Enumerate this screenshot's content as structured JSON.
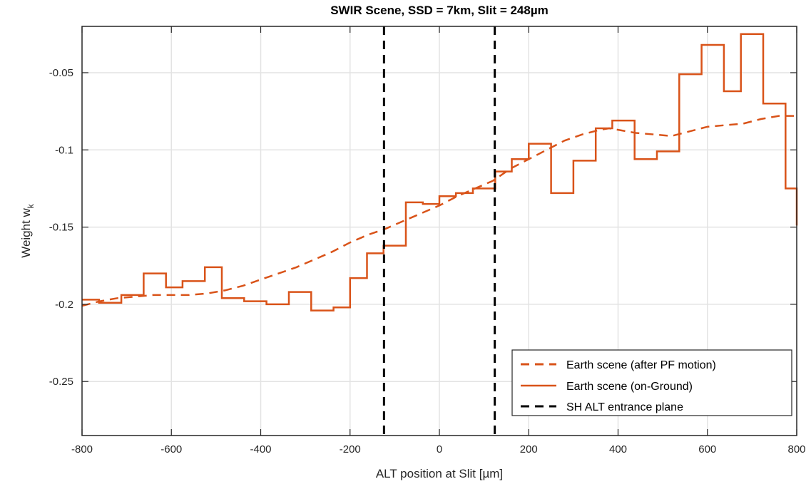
{
  "chart_data": {
    "type": "line",
    "title": "SWIR Scene, SSD = 7km, Slit = 248µm",
    "xlabel": "ALT position at Slit [µm]",
    "ylabel": "Weight w",
    "ylabel_subscript": "k",
    "xlim": [
      -800,
      800
    ],
    "ylim": [
      -0.285,
      -0.02
    ],
    "xticks": [
      -800,
      -600,
      -400,
      -200,
      0,
      200,
      400,
      600,
      800
    ],
    "xtick_labels": [
      "-800",
      "-600",
      "-400",
      "-200",
      "0",
      "200",
      "400",
      "600",
      "800"
    ],
    "yticks": [
      -0.25,
      -0.2,
      -0.15,
      -0.1,
      -0.05
    ],
    "ytick_labels": [
      "-0.25",
      "-0.2",
      "-0.15",
      "-0.1",
      "-0.05"
    ],
    "grid": true,
    "legend_position": "bottom-right",
    "colors": {
      "earth": "#D95319",
      "entrance": "#000000"
    },
    "series": [
      {
        "name": "Earth scene (after PF motion)",
        "style": "dashed",
        "x": [
          -800,
          -760,
          -720,
          -680,
          -640,
          -600,
          -560,
          -520,
          -480,
          -440,
          -400,
          -360,
          -320,
          -280,
          -240,
          -200,
          -160,
          -120,
          -80,
          -40,
          0,
          40,
          80,
          120,
          160,
          200,
          240,
          280,
          320,
          360,
          380,
          400,
          440,
          480,
          520,
          560,
          600,
          640,
          680,
          720,
          760,
          800
        ],
        "y": [
          -0.201,
          -0.198,
          -0.196,
          -0.195,
          -0.194,
          -0.194,
          -0.194,
          -0.193,
          -0.191,
          -0.188,
          -0.184,
          -0.18,
          -0.176,
          -0.171,
          -0.166,
          -0.16,
          -0.155,
          -0.151,
          -0.146,
          -0.141,
          -0.136,
          -0.13,
          -0.125,
          -0.12,
          -0.112,
          -0.106,
          -0.1,
          -0.094,
          -0.09,
          -0.087,
          -0.086,
          -0.087,
          -0.089,
          -0.09,
          -0.091,
          -0.088,
          -0.085,
          -0.084,
          -0.083,
          -0.08,
          -0.078,
          -0.078
        ]
      },
      {
        "name": "Earth scene (on-Ground)",
        "style": "stairs",
        "edges": [
          -800,
          -762,
          -712,
          -662,
          -612,
          -575,
          -525,
          -487,
          -437,
          -387,
          -337,
          -287,
          -237,
          -200,
          -162,
          -125,
          -75,
          -37,
          0,
          37,
          75,
          125,
          162,
          200,
          250,
          300,
          350,
          387,
          437,
          487,
          537,
          587,
          637,
          675,
          725,
          775,
          800
        ],
        "values": [
          -0.197,
          -0.199,
          -0.194,
          -0.18,
          -0.189,
          -0.185,
          -0.176,
          -0.196,
          -0.198,
          -0.2,
          -0.192,
          -0.204,
          -0.202,
          -0.183,
          -0.167,
          -0.162,
          -0.134,
          -0.135,
          -0.13,
          -0.128,
          -0.125,
          -0.114,
          -0.106,
          -0.096,
          -0.128,
          -0.107,
          -0.086,
          -0.081,
          -0.106,
          -0.101,
          -0.051,
          -0.032,
          -0.062,
          -0.025,
          -0.07,
          -0.125,
          -0.149
        ]
      },
      {
        "name": "SH ALT entrance plane",
        "style": "vertical-dashed",
        "x_positions": [
          -124,
          124
        ]
      }
    ]
  }
}
